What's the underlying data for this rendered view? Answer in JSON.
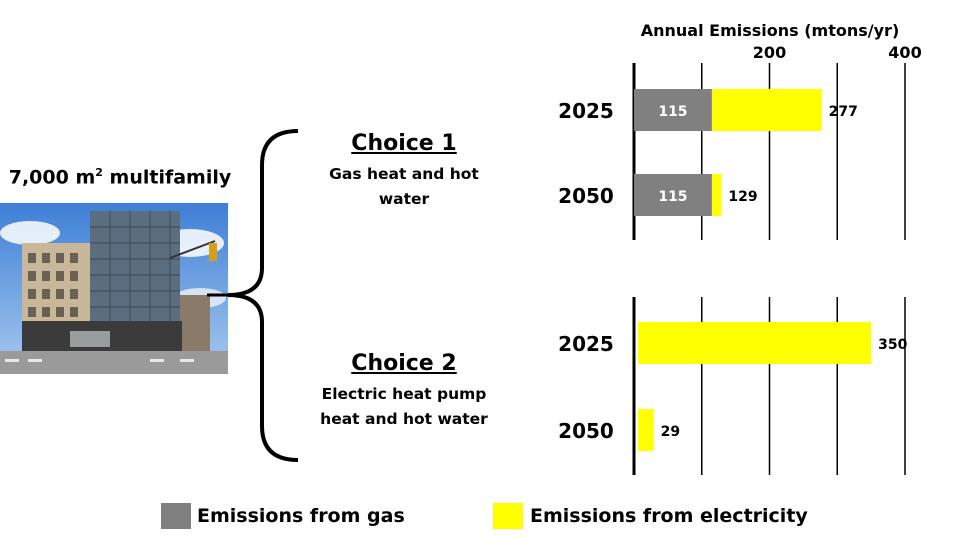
{
  "building": {
    "label_prefix": "7,000 m",
    "label_sup": "2",
    "label_suffix": " multifamily",
    "photo_icon": "apartment-building-photo"
  },
  "choices": [
    {
      "title": "Choice 1",
      "desc_lines": [
        "Gas heat and hot",
        "water"
      ]
    },
    {
      "title": "Choice 2",
      "desc_lines": [
        "Electric heat pump",
        "heat and hot water"
      ]
    }
  ],
  "legend": {
    "gas_label": "Emissions from gas",
    "electricity_label": "Emissions from electricity"
  },
  "colors": {
    "gas": "#808080",
    "electricity": "#ffff00",
    "bracket": "#000000"
  },
  "chart_data": {
    "type": "bar",
    "orientation": "horizontal",
    "stacked": true,
    "title": "Annual Emissions (mtons/yr)",
    "xlim": [
      0,
      400
    ],
    "xticks": [
      200,
      400
    ],
    "grid": true,
    "groups": [
      {
        "choice": "Choice 1",
        "bars": [
          {
            "year": "2025",
            "gas": 115,
            "total": 277,
            "gas_label": "115",
            "total_label": "277"
          },
          {
            "year": "2050",
            "gas": 115,
            "total": 129,
            "gas_label": "115",
            "total_label": "129"
          }
        ]
      },
      {
        "choice": "Choice 2",
        "bars": [
          {
            "year": "2025",
            "gas": 0,
            "total": 350,
            "gas_label": "",
            "total_label": "350"
          },
          {
            "year": "2050",
            "gas": 0,
            "total": 29,
            "gas_label": "",
            "total_label": "29"
          }
        ]
      }
    ]
  }
}
